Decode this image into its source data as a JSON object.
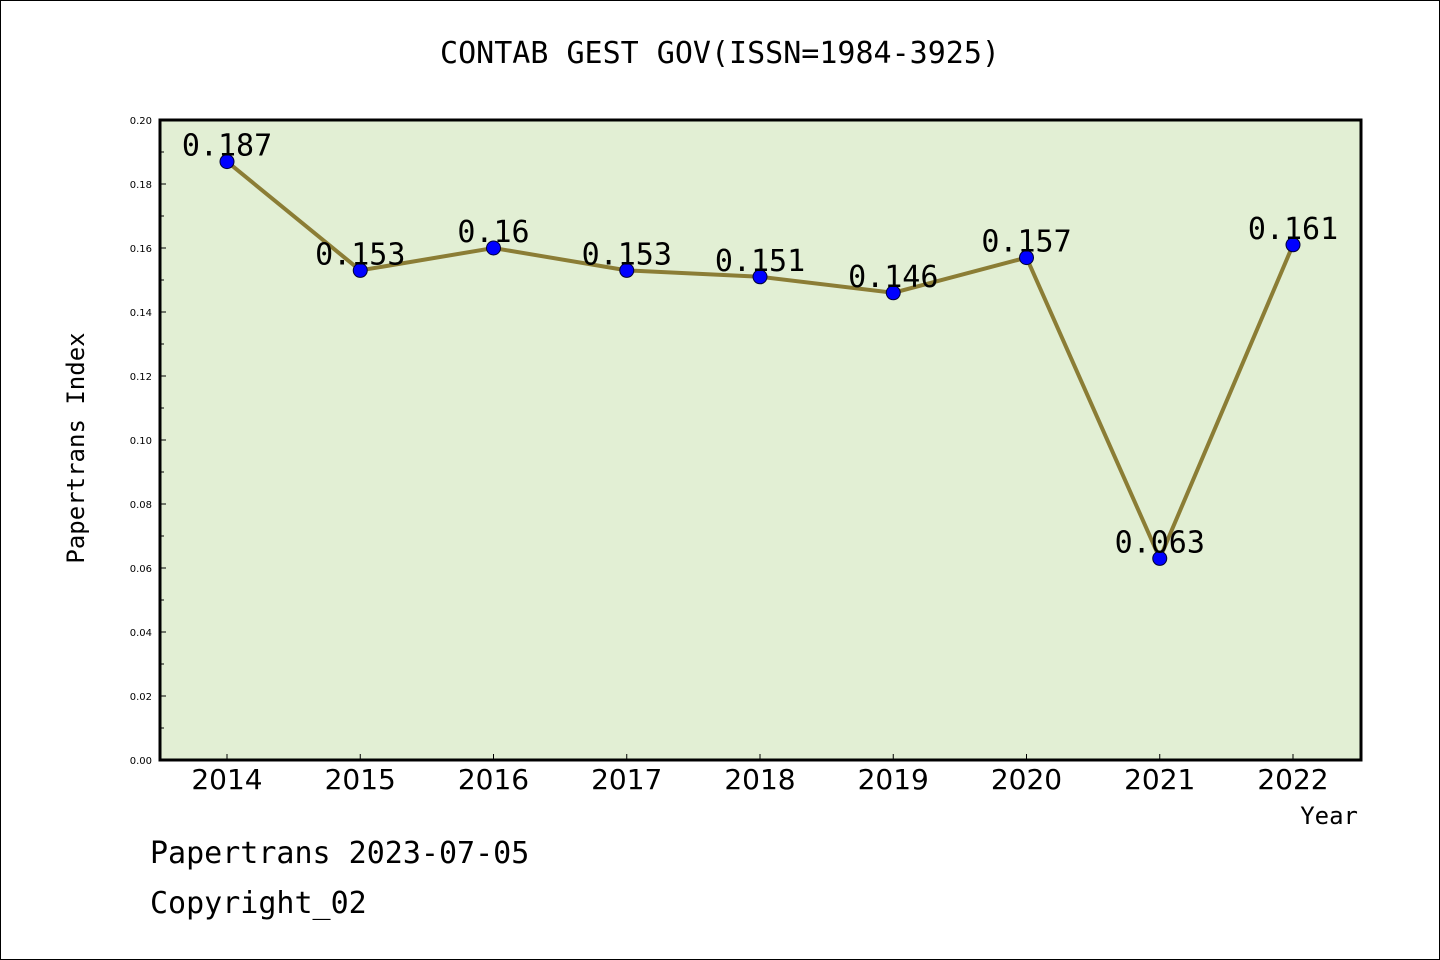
{
  "title": "CONTAB GEST GOV(ISSN=1984-3925)",
  "footer": {
    "line1": "Papertrans 2023-07-05",
    "line2": "Copyright_02"
  },
  "colors": {
    "plot_bg": "#e2efd4",
    "line": "#8b7d35",
    "marker": "#0000ff"
  },
  "chart_data": {
    "type": "line",
    "title": "CONTAB GEST GOV(ISSN=1984-3925)",
    "xlabel": "Year",
    "ylabel": "Papertrans Index",
    "categories": [
      "2014",
      "2015",
      "2016",
      "2017",
      "2018",
      "2019",
      "2020",
      "2021",
      "2022"
    ],
    "values": [
      0.187,
      0.153,
      0.16,
      0.153,
      0.151,
      0.146,
      0.157,
      0.063,
      0.161
    ],
    "data_labels": [
      "0.187",
      "0.153",
      "0.16",
      "0.153",
      "0.151",
      "0.146",
      "0.157",
      "0.063",
      "0.161"
    ],
    "ylim": [
      0,
      0.2
    ],
    "yticks": [
      "0.00",
      "0.02",
      "0.04",
      "0.06",
      "0.08",
      "0.10",
      "0.12",
      "0.14",
      "0.16",
      "0.18",
      "0.20"
    ],
    "grid": false,
    "legend": "none"
  }
}
